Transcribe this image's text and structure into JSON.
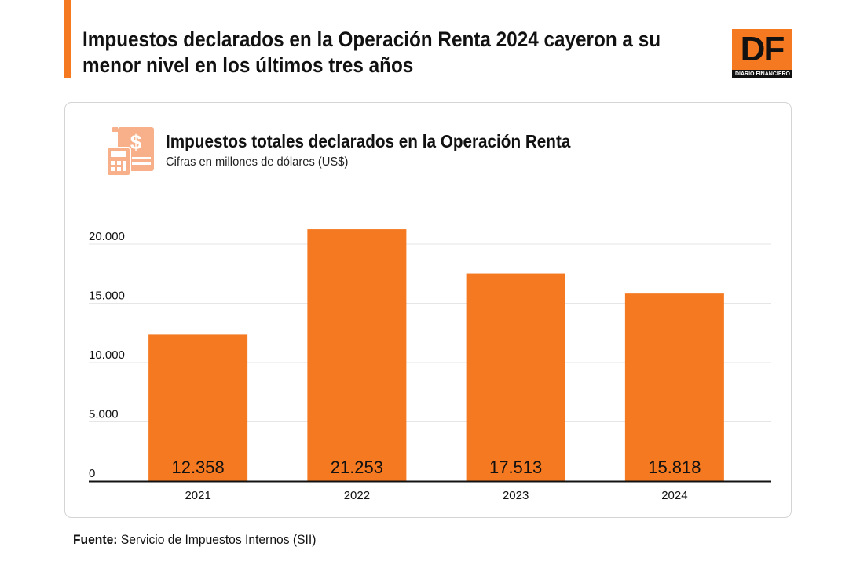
{
  "header": {
    "headline_line1": "Impuestos declarados en la Operación Renta 2024 cayeron a su",
    "headline_line2": "menor nivel en los últimos tres años",
    "logo_text": "DF",
    "logo_subtext": "DIARIO FINANCIERO"
  },
  "icons": {
    "chart_icon": "tax-document-calculator-icon"
  },
  "colors": {
    "accent": "#f47920",
    "grid": "#e6e6e6",
    "axis": "#111111"
  },
  "chart_data": {
    "type": "bar",
    "title": "Impuestos totales declarados en la Operación Renta",
    "subtitle": "Cifras en millones de dólares (US$)",
    "categories": [
      "2021",
      "2022",
      "2023",
      "2024"
    ],
    "values": [
      12358,
      21253,
      17513,
      15818
    ],
    "value_labels": [
      "12.358",
      "21.253",
      "17.513",
      "15.818"
    ],
    "y_ticks": [
      0,
      5000,
      10000,
      15000,
      20000
    ],
    "y_tick_labels": [
      "0",
      "5.000",
      "10.000",
      "15.000",
      "20.000"
    ],
    "ylim": [
      0,
      20000
    ],
    "grid": true,
    "xlabel": "",
    "ylabel": ""
  },
  "footer": {
    "source_label": "Fuente:",
    "source_text": " Servicio de Impuestos Internos (SII)"
  }
}
